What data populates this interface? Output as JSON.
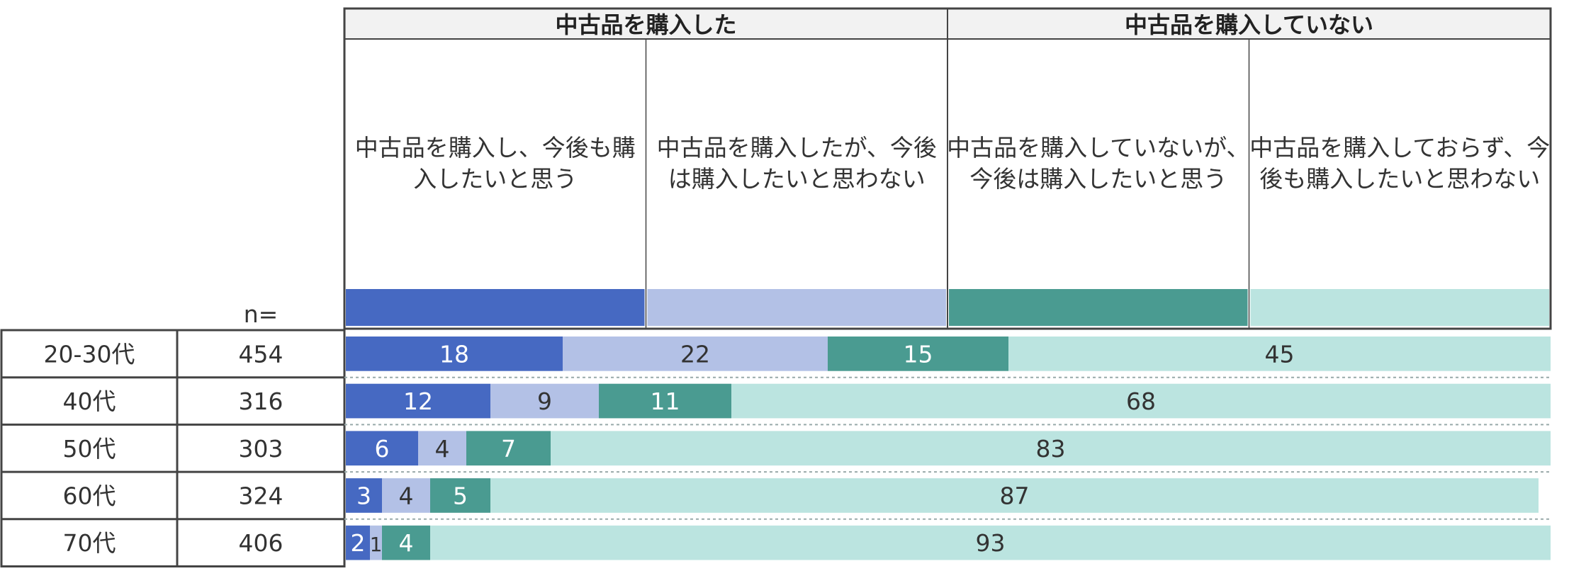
{
  "header": {
    "groups": [
      "中古品を購入した",
      "中古品を購入していない"
    ],
    "categories": [
      [
        "中古品を購入し、今後も購",
        "入したいと思う"
      ],
      [
        "中古品を購入したが、今後",
        "は購入したいと思わない"
      ],
      [
        "中古品を購入していないが、",
        "今後は購入したいと思う"
      ],
      [
        "中古品を購入しておらず、今",
        "後も購入したいと思わない"
      ]
    ],
    "n_label": "n="
  },
  "colors": [
    "#4669C2",
    "#B3C1E6",
    "#4A9B91",
    "#BBE4E0"
  ],
  "chart_data": {
    "type": "bar",
    "stacked": true,
    "orientation": "horizontal",
    "unit": "%",
    "categories": [
      "20-30代",
      "40代",
      "50代",
      "60代",
      "70代"
    ],
    "n": [
      454,
      316,
      303,
      324,
      406
    ],
    "series": [
      {
        "name": "中古品を購入し、今後も購入したいと思う",
        "values": [
          18,
          12,
          6,
          3,
          2
        ]
      },
      {
        "name": "中古品を購入したが、今後は購入したいと思わない",
        "values": [
          22,
          9,
          4,
          4,
          1
        ]
      },
      {
        "name": "中古品を購入していないが、今後は購入したいと思う",
        "values": [
          15,
          11,
          7,
          5,
          4
        ]
      },
      {
        "name": "中古品を購入しておらず、今後も購入したいと思わない",
        "values": [
          45,
          68,
          83,
          87,
          93
        ]
      }
    ],
    "xlim": [
      0,
      100
    ]
  }
}
